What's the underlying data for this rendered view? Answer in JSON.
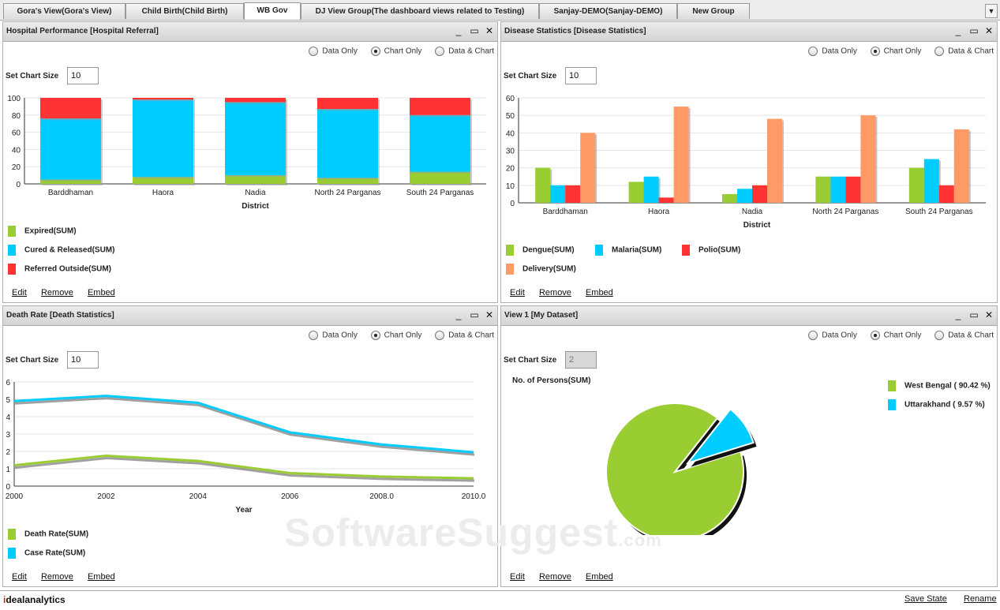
{
  "tabs": [
    {
      "label": "Gora's View(Gora's View)"
    },
    {
      "label": "Child Birth(Child Birth)"
    },
    {
      "label": "WB Gov"
    },
    {
      "label": "DJ View Group(The dashboard views related to Testing)"
    },
    {
      "label": "Sanjay-DEMO(Sanjay-DEMO)"
    },
    {
      "label": "New Group"
    }
  ],
  "common": {
    "radio_data_only": "Data Only",
    "radio_chart_only": "Chart Only",
    "radio_data_chart": "Data & Chart",
    "set_chart_size": "Set Chart Size",
    "edit": "Edit",
    "remove": "Remove",
    "embed": "Embed"
  },
  "panels": [
    {
      "title": "Hospital Performance [Hospital Referral]",
      "chart_size": "10",
      "legend": [
        "Expired(SUM)",
        "Cured & Released(SUM)",
        "Referred Outside(SUM)"
      ]
    },
    {
      "title": "Disease Statistics [Disease Statistics]",
      "chart_size": "10",
      "legend": [
        "Dengue(SUM)",
        "Malaria(SUM)",
        "Polio(SUM)",
        "Delivery(SUM)"
      ]
    },
    {
      "title": "Death Rate [Death Statistics]",
      "chart_size": "10",
      "legend": [
        "Death Rate(SUM)",
        "Case Rate(SUM)"
      ]
    },
    {
      "title": "View 1 [My Dataset]",
      "chart_size": "2",
      "pie_title": "No. of Persons(SUM)",
      "legend": [
        "West Bengal ( 90.42 %)",
        "Uttarakhand ( 9.57 %)"
      ]
    }
  ],
  "colors": {
    "green": "#9acd32",
    "cyan": "#00ccff",
    "red": "#ff3333",
    "orange": "#ff9966"
  },
  "chart_data": [
    {
      "type": "bar",
      "stacked": true,
      "categories": [
        "Barddhaman",
        "Haora",
        "Nadia",
        "North 24 Parganas",
        "South 24 Parganas"
      ],
      "xlabel": "District",
      "ylabel": "",
      "ylim": [
        0,
        100
      ],
      "yticks": [
        "0",
        "20",
        "40",
        "60",
        "80",
        "100"
      ],
      "series": [
        {
          "name": "Expired(SUM)",
          "values": [
            5,
            8,
            10,
            7,
            14
          ]
        },
        {
          "name": "Cured & Released(SUM)",
          "values": [
            71,
            90,
            85,
            80,
            66
          ]
        },
        {
          "name": "Referred Outside(SUM)",
          "values": [
            24,
            2,
            5,
            13,
            20
          ]
        }
      ]
    },
    {
      "type": "bar",
      "categories": [
        "Barddhaman",
        "Haora",
        "Nadia",
        "North 24 Parganas",
        "South 24 Parganas"
      ],
      "xlabel": "District",
      "ylabel": "",
      "ylim": [
        0,
        60
      ],
      "yticks": [
        "0",
        "10",
        "20",
        "30",
        "40",
        "50",
        "60"
      ],
      "series": [
        {
          "name": "Dengue(SUM)",
          "values": [
            20,
            12,
            5,
            15,
            20
          ]
        },
        {
          "name": "Malaria(SUM)",
          "values": [
            10,
            15,
            8,
            15,
            25
          ]
        },
        {
          "name": "Polio(SUM)",
          "values": [
            10,
            3,
            10,
            15,
            10
          ]
        },
        {
          "name": "Delivery(SUM)",
          "values": [
            40,
            55,
            48,
            50,
            42
          ]
        }
      ]
    },
    {
      "type": "line",
      "x": [
        2000,
        2002,
        2004,
        2006,
        2008,
        2010
      ],
      "xticks": [
        "2000",
        "2002",
        "2004",
        "2006",
        "2008.0",
        "2010.0"
      ],
      "xlabel": "Year",
      "ylabel": "",
      "ylim": [
        0,
        6
      ],
      "yticks": [
        "0",
        "1",
        "2",
        "3",
        "4",
        "5",
        "6"
      ],
      "series": [
        {
          "name": "Death Rate(SUM)",
          "values": [
            1.2,
            1.75,
            1.45,
            0.75,
            0.55,
            0.45
          ]
        },
        {
          "name": "Case Rate(SUM)",
          "values": [
            4.9,
            5.2,
            4.8,
            3.1,
            2.4,
            1.95
          ]
        }
      ]
    },
    {
      "type": "pie",
      "title": "No. of Persons(SUM)",
      "categories": [
        "West Bengal",
        "Uttarakhand"
      ],
      "values": [
        90.42,
        9.57
      ]
    }
  ],
  "footer": {
    "logo_i": "i",
    "logo_rest": "dealanalytics",
    "save_state": "Save State",
    "rename": "Rename"
  },
  "watermark": {
    "main": "SoftwareSuggest",
    "suffix": ".com"
  }
}
